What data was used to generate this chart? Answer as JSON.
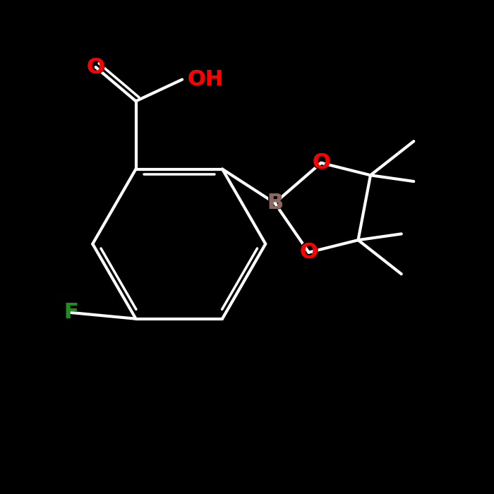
{
  "background_color": "#000000",
  "bond_color": "#ffffff",
  "atom_colors": {
    "O": "#ff0000",
    "F": "#228B22",
    "B": "#8B6960",
    "C": "#ffffff",
    "H": "#ffffff"
  },
  "figsize": [
    7.0,
    7.0
  ],
  "dpi": 100,
  "lw": 3.0,
  "fontsize": 22
}
